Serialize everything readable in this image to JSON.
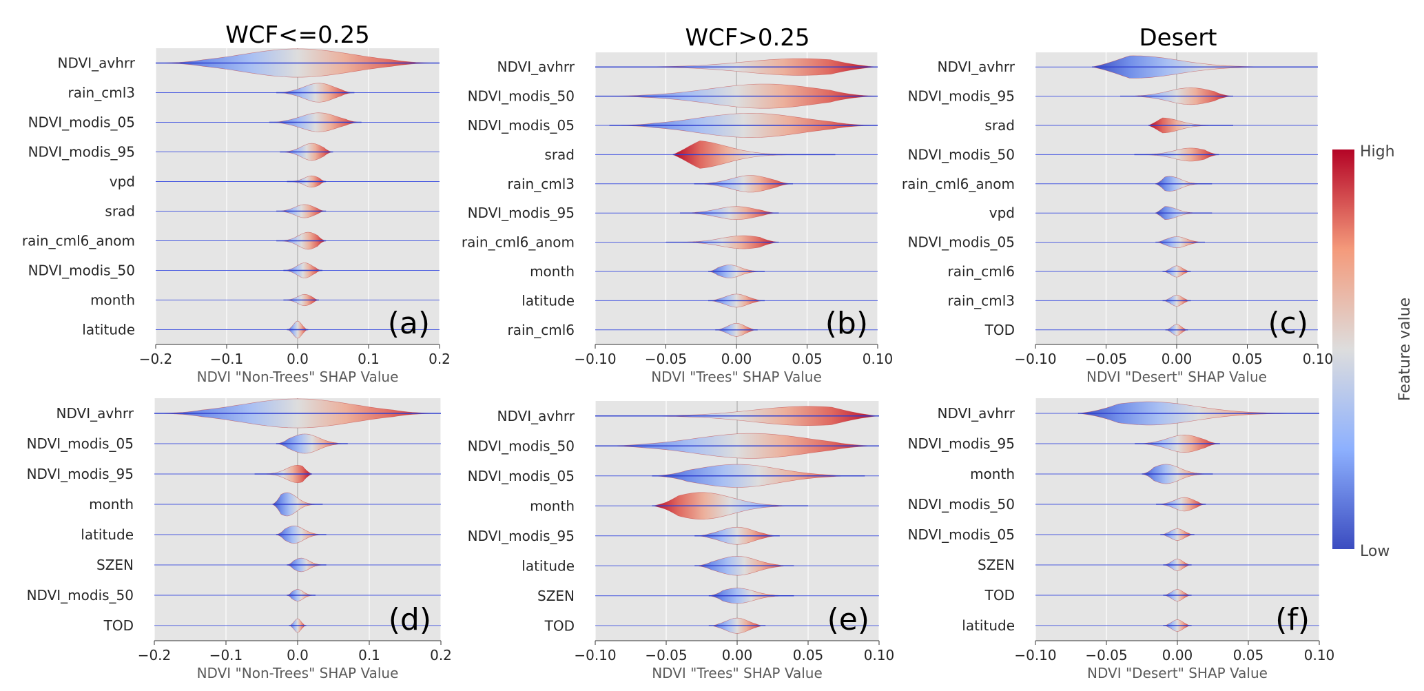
{
  "colorbar": {
    "high_label": "High",
    "low_label": "Low",
    "title": "Feature value"
  },
  "chart_data": [
    {
      "type": "violin",
      "title": "WCF<=0.25",
      "panel_label": "(a)",
      "xlabel": "NDVI \"Non-Trees\" SHAP Value",
      "xlim": [
        -0.2,
        0.2
      ],
      "xticks": [
        -0.2,
        -0.1,
        0.0,
        0.1,
        0.2
      ],
      "xtick_labels": [
        "−0.2",
        "−0.1",
        "0.0",
        "0.1",
        "0.2"
      ],
      "features": [
        "NDVI_avhrr",
        "rain_cml3",
        "NDVI_modis_05",
        "NDVI_modis_95",
        "vpd",
        "srad",
        "rain_cml6_anom",
        "NDVI_modis_50",
        "month",
        "latitude"
      ],
      "shape": [
        [
          -0.2,
          0.2,
          0.15,
          0
        ],
        [
          -0.03,
          0.08,
          0.1,
          0.03
        ],
        [
          -0.04,
          0.09,
          0.1,
          0.03
        ],
        [
          -0.025,
          0.05,
          0.09,
          0.02
        ],
        [
          -0.015,
          0.04,
          0.06,
          0.02
        ],
        [
          -0.03,
          0.04,
          0.07,
          0.01
        ],
        [
          -0.03,
          0.04,
          0.09,
          0.015
        ],
        [
          -0.02,
          0.035,
          0.08,
          0.01
        ],
        [
          -0.02,
          0.03,
          0.06,
          0.01
        ],
        [
          -0.015,
          0.015,
          0.09,
          0
        ]
      ]
    },
    {
      "type": "violin",
      "title": "WCF>0.25",
      "panel_label": "(b)",
      "xlabel": "NDVI \"Trees\" SHAP Value",
      "xlim": [
        -0.1,
        0.1
      ],
      "xticks": [
        -0.1,
        -0.05,
        0.0,
        0.05,
        0.1
      ],
      "xtick_labels": [
        "−0.10",
        "−0.05",
        "0.00",
        "0.05",
        "0.10"
      ],
      "features": [
        "NDVI_avhrr",
        "NDVI_modis_50",
        "NDVI_modis_05",
        "srad",
        "rain_cml3",
        "NDVI_modis_95",
        "rain_cml6_anom",
        "month",
        "latitude",
        "rain_cml6"
      ],
      "shape": [
        [
          -0.1,
          0.1,
          0.09,
          0.045
        ],
        [
          -0.1,
          0.1,
          0.13,
          0.02
        ],
        [
          -0.09,
          0.1,
          0.13,
          0.01
        ],
        [
          -0.045,
          0.07,
          0.15,
          -0.03
        ],
        [
          -0.03,
          0.04,
          0.09,
          0.01
        ],
        [
          -0.04,
          0.03,
          0.07,
          0
        ],
        [
          -0.05,
          0.03,
          0.07,
          0.005
        ],
        [
          -0.02,
          0.02,
          0.07,
          -0.005
        ],
        [
          -0.02,
          0.02,
          0.07,
          0
        ],
        [
          -0.015,
          0.015,
          0.07,
          0
        ]
      ]
    },
    {
      "type": "violin",
      "title": "Desert",
      "panel_label": "(c)",
      "xlabel": "NDVI \"Desert\" SHAP Value",
      "xlim": [
        -0.1,
        0.1
      ],
      "xticks": [
        -0.1,
        -0.05,
        0.0,
        0.05,
        0.1
      ],
      "xtick_labels": [
        "−0.10",
        "−0.05",
        "0.00",
        "0.05",
        "0.10"
      ],
      "features": [
        "NDVI_avhrr",
        "NDVI_modis_95",
        "srad",
        "NDVI_modis_50",
        "rain_cml6_anom",
        "vpd",
        "NDVI_modis_05",
        "rain_cml6",
        "rain_cml3",
        "TOD"
      ],
      "shape": [
        [
          -0.06,
          0.1,
          0.12,
          -0.03
        ],
        [
          -0.04,
          0.04,
          0.09,
          0.01
        ],
        [
          -0.02,
          0.04,
          0.08,
          -0.01
        ],
        [
          -0.03,
          0.03,
          0.07,
          0.01
        ],
        [
          -0.015,
          0.025,
          0.08,
          -0.005
        ],
        [
          -0.015,
          0.025,
          0.07,
          -0.008
        ],
        [
          -0.015,
          0.02,
          0.06,
          0
        ],
        [
          -0.01,
          0.01,
          0.06,
          0
        ],
        [
          -0.01,
          0.01,
          0.06,
          0
        ],
        [
          -0.008,
          0.008,
          0.06,
          0
        ]
      ]
    },
    {
      "type": "violin",
      "title": "",
      "panel_label": "(d)",
      "xlabel": "NDVI \"Non-Trees\" SHAP Value",
      "xlim": [
        -0.2,
        0.2
      ],
      "xticks": [
        -0.2,
        -0.1,
        0.0,
        0.1,
        0.2
      ],
      "xtick_labels": [
        "−0.2",
        "−0.1",
        "0.0",
        "0.1",
        "0.2"
      ],
      "features": [
        "NDVI_avhrr",
        "NDVI_modis_05",
        "NDVI_modis_95",
        "month",
        "latitude",
        "SZEN",
        "NDVI_modis_50",
        "TOD"
      ],
      "shape": [
        [
          -0.2,
          0.2,
          0.15,
          0
        ],
        [
          -0.03,
          0.07,
          0.1,
          0.01
        ],
        [
          -0.06,
          0.02,
          0.09,
          0
        ],
        [
          -0.035,
          0.035,
          0.12,
          -0.015
        ],
        [
          -0.03,
          0.04,
          0.09,
          -0.005
        ],
        [
          -0.015,
          0.04,
          0.07,
          0.005
        ],
        [
          -0.015,
          0.025,
          0.06,
          0
        ],
        [
          -0.012,
          0.012,
          0.07,
          0
        ]
      ]
    },
    {
      "type": "violin",
      "title": "",
      "panel_label": "(e)",
      "xlabel": "NDVI \"Trees\" SHAP Value",
      "xlim": [
        -0.1,
        0.1
      ],
      "xticks": [
        -0.1,
        -0.05,
        0.0,
        0.05,
        0.1
      ],
      "xtick_labels": [
        "−0.10",
        "−0.05",
        "0.00",
        "0.05",
        "0.10"
      ],
      "features": [
        "NDVI_avhrr",
        "NDVI_modis_50",
        "NDVI_modis_05",
        "month",
        "NDVI_modis_95",
        "latitude",
        "SZEN",
        "TOD"
      ],
      "shape": [
        [
          -0.1,
          0.1,
          0.1,
          0.05
        ],
        [
          -0.1,
          0.1,
          0.13,
          0.01
        ],
        [
          -0.06,
          0.09,
          0.12,
          0
        ],
        [
          -0.06,
          0.05,
          0.14,
          -0.025
        ],
        [
          -0.03,
          0.03,
          0.09,
          0
        ],
        [
          -0.03,
          0.04,
          0.1,
          0
        ],
        [
          -0.02,
          0.04,
          0.08,
          0
        ],
        [
          -0.02,
          0.02,
          0.08,
          0
        ]
      ]
    },
    {
      "type": "violin",
      "title": "",
      "panel_label": "(f)",
      "xlabel": "NDVI \"Desert\" SHAP Value",
      "xlim": [
        -0.1,
        0.1
      ],
      "xticks": [
        -0.1,
        -0.05,
        0.0,
        0.05,
        0.1
      ],
      "xtick_labels": [
        "−0.10",
        "−0.05",
        "0.00",
        "0.05",
        "0.10"
      ],
      "features": [
        "NDVI_avhrr",
        "NDVI_modis_95",
        "month",
        "NDVI_modis_50",
        "NDVI_modis_05",
        "SZEN",
        "TOD",
        "latitude"
      ],
      "shape": [
        [
          -0.07,
          0.1,
          0.12,
          -0.02
        ],
        [
          -0.03,
          0.03,
          0.09,
          0.005
        ],
        [
          -0.025,
          0.025,
          0.1,
          -0.008
        ],
        [
          -0.015,
          0.02,
          0.07,
          0.005
        ],
        [
          -0.012,
          0.012,
          0.06,
          0
        ],
        [
          -0.01,
          0.01,
          0.06,
          0
        ],
        [
          -0.01,
          0.01,
          0.06,
          0
        ],
        [
          -0.01,
          0.01,
          0.06,
          0
        ]
      ]
    }
  ]
}
